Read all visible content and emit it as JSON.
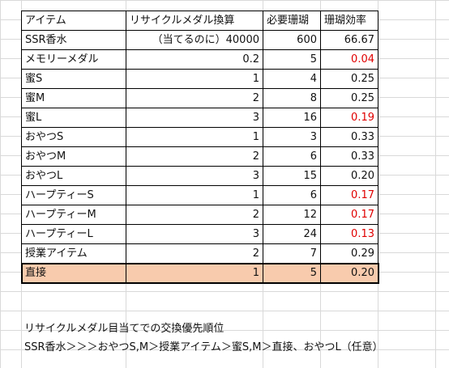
{
  "columns": [
    "アイテム",
    "リサイクルメダル換算",
    "必要珊瑚",
    "珊瑚効率"
  ],
  "rows": [
    {
      "item": "SSR香水",
      "medal": "（当てるのに）40000",
      "coral": "600",
      "eff": "66.67",
      "red": false
    },
    {
      "item": "メモリーメダル",
      "medal": "0.2",
      "coral": "5",
      "eff": "0.04",
      "red": true
    },
    {
      "item": "蜜S",
      "medal": "1",
      "coral": "4",
      "eff": "0.25",
      "red": false
    },
    {
      "item": "蜜M",
      "medal": "2",
      "coral": "8",
      "eff": "0.25",
      "red": false
    },
    {
      "item": "蜜L",
      "medal": "3",
      "coral": "16",
      "eff": "0.19",
      "red": true
    },
    {
      "item": "おやつS",
      "medal": "1",
      "coral": "3",
      "eff": "0.33",
      "red": false
    },
    {
      "item": "おやつM",
      "medal": "2",
      "coral": "6",
      "eff": "0.33",
      "red": false
    },
    {
      "item": "おやつL",
      "medal": "3",
      "coral": "15",
      "eff": "0.20",
      "red": false
    },
    {
      "item": "ハープティーS",
      "medal": "1",
      "coral": "6",
      "eff": "0.17",
      "red": true
    },
    {
      "item": "ハープティーM",
      "medal": "2",
      "coral": "12",
      "eff": "0.17",
      "red": true
    },
    {
      "item": "ハープティーL",
      "medal": "3",
      "coral": "24",
      "eff": "0.13",
      "red": true
    },
    {
      "item": "授業アイテム",
      "medal": "2",
      "coral": "7",
      "eff": "0.29",
      "red": false
    },
    {
      "item": "直接",
      "medal": "1",
      "coral": "5",
      "eff": "0.20",
      "red": false,
      "highlight": true
    }
  ],
  "notes": {
    "line1": "リサイクルメダル目当てでの交換優先順位",
    "line2": "SSR香水＞＞＞おやつS,M＞授業アイテム＞蜜S,M＞直接、おやつL（任意）"
  },
  "colors": {
    "red_text": "#e00000",
    "highlight": "#f8cbad"
  }
}
